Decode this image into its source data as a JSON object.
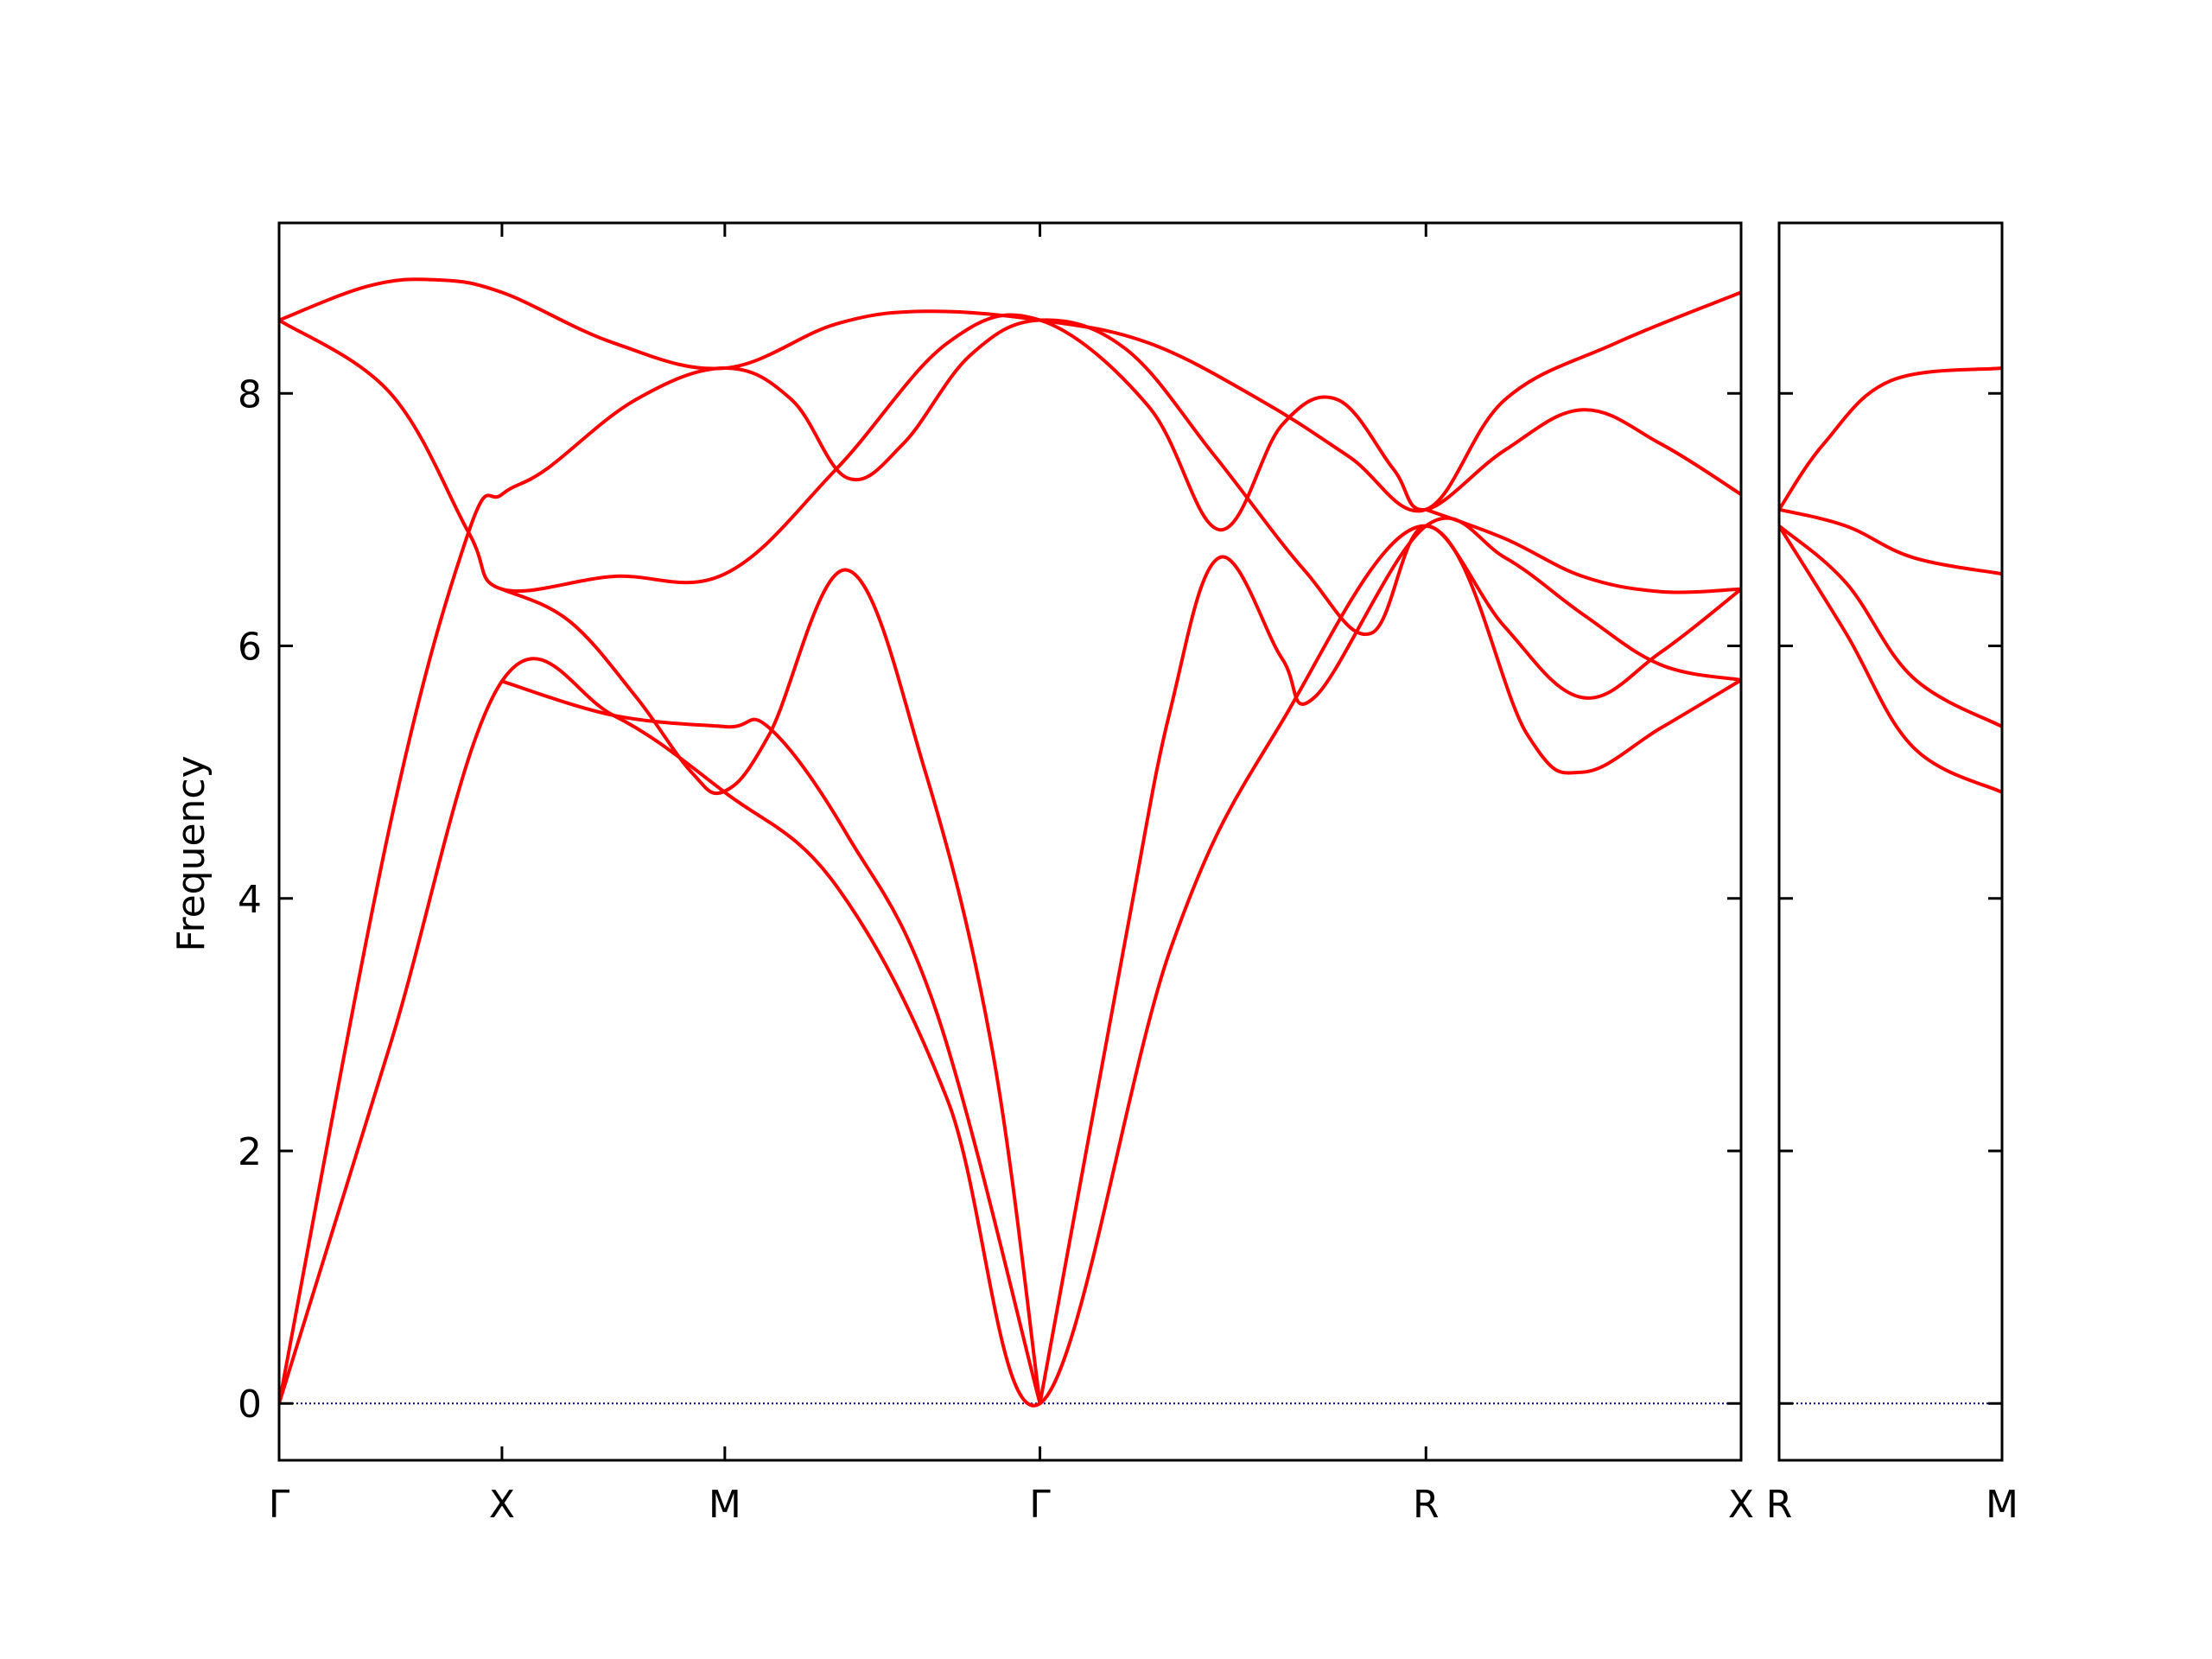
{
  "chart_data": {
    "type": "line",
    "ylabel": "Frequency",
    "ylim": [
      -0.45,
      9.35
    ],
    "yticks": [
      0,
      2,
      4,
      6,
      8
    ],
    "colors": {
      "bands": "#ff0000",
      "zero_line": "#00008b",
      "axes": "#000000"
    },
    "panels": [
      {
        "id": "main",
        "xticks": [
          {
            "x": 0,
            "label": "Γ"
          },
          {
            "x": 1,
            "label": "X"
          },
          {
            "x": 2,
            "label": "M"
          },
          {
            "x": 3.414,
            "label": "Γ"
          },
          {
            "x": 5.146,
            "label": "R"
          },
          {
            "x": 6.56,
            "label": "X"
          }
        ],
        "xlim": [
          0,
          6.56
        ],
        "bands": [
          {
            "name": "",
            "points": [
              [
                0,
                0
              ],
              [
                0.5,
                2.85
              ],
              [
                1,
                5.72
              ],
              [
                1.5,
                5.45
              ],
              [
                2,
                4.84
              ],
              [
                2.5,
                4.1
              ],
              [
                3,
                2.4
              ],
              [
                3.414,
                0
              ],
              [
                4,
                3.6
              ],
              [
                4.5,
                5.4
              ],
              [
                5.146,
                6.95
              ],
              [
                5.6,
                5.3
              ],
              [
                5.85,
                5.0
              ],
              [
                6.2,
                5.35
              ],
              [
                6.56,
                5.73
              ]
            ]
          },
          {
            "name": "",
            "points": [
              [
                0,
                0
              ],
              [
                0.5,
                4.6
              ],
              [
                0.85,
                6.9
              ],
              [
                1,
                7.2
              ],
              [
                1.2,
                7.4
              ],
              [
                1.6,
                7.95
              ],
              [
                2,
                8.2
              ],
              [
                2.3,
                7.95
              ],
              [
                2.55,
                7.33
              ],
              [
                2.8,
                7.6
              ],
              [
                3.1,
                8.3
              ],
              [
                3.414,
                8.58
              ],
              [
                3.8,
                8.35
              ],
              [
                4.2,
                7.5
              ],
              [
                4.6,
                6.6
              ],
              [
                4.9,
                6.1
              ],
              [
                5.146,
                6.95
              ],
              [
                5.5,
                6.15
              ],
              [
                5.85,
                5.59
              ],
              [
                6.2,
                5.95
              ],
              [
                6.56,
                6.45
              ]
            ]
          },
          {
            "name": "",
            "points": [
              [
                0,
                8.58
              ],
              [
                0.5,
                8.0
              ],
              [
                0.85,
                6.9
              ],
              [
                1,
                6.45
              ],
              [
                1.5,
                6.55
              ],
              [
                2,
                6.57
              ],
              [
                2.5,
                7.4
              ],
              [
                3,
                8.4
              ],
              [
                3.414,
                8.58
              ],
              [
                3.9,
                7.9
              ],
              [
                4.22,
                6.92
              ],
              [
                4.5,
                7.75
              ],
              [
                4.75,
                7.95
              ],
              [
                5,
                7.4
              ],
              [
                5.146,
                7.08
              ],
              [
                5.5,
                7.55
              ],
              [
                5.85,
                7.87
              ],
              [
                6.2,
                7.6
              ],
              [
                6.56,
                7.2
              ]
            ]
          },
          {
            "name": "",
            "points": [
              [
                0,
                8.58
              ],
              [
                0.4,
                8.85
              ],
              [
                0.7,
                8.9
              ],
              [
                1,
                8.8
              ],
              [
                1.5,
                8.4
              ],
              [
                2,
                8.2
              ],
              [
                2.5,
                8.55
              ],
              [
                2.9,
                8.65
              ],
              [
                3.414,
                8.58
              ],
              [
                3.9,
                8.4
              ],
              [
                4.4,
                7.95
              ],
              [
                4.8,
                7.5
              ],
              [
                5.146,
                7.08
              ],
              [
                5.5,
                7.95
              ],
              [
                6.0,
                8.4
              ],
              [
                6.56,
                8.8
              ]
            ]
          },
          {
            "name": "",
            "points": [
              [
                1,
                6.45
              ],
              [
                1.3,
                6.2
              ],
              [
                1.6,
                5.6
              ],
              [
                1.85,
                5.0
              ],
              [
                2,
                4.85
              ],
              [
                2.2,
                5.3
              ],
              [
                2.55,
                6.6
              ],
              [
                2.9,
                5.0
              ],
              [
                3.2,
                2.8
              ],
              [
                3.414,
                0
              ]
            ]
          },
          {
            "name": "",
            "points": [
              [
                1,
                5.72
              ],
              [
                1.5,
                5.45
              ],
              [
                2,
                5.36
              ],
              [
                2.2,
                5.35
              ],
              [
                2.55,
                4.5
              ],
              [
                2.95,
                3.1
              ],
              [
                3.414,
                0
              ]
            ]
          },
          {
            "name": "",
            "points": [
              [
                3.414,
                0
              ],
              [
                3.8,
                3.7
              ],
              [
                4.0,
                5.5
              ],
              [
                4.22,
                6.7
              ],
              [
                4.5,
                5.9
              ],
              [
                4.65,
                5.6
              ],
              [
                5.146,
                6.95
              ],
              [
                5.5,
                6.7
              ],
              [
                5.85,
                6.25
              ],
              [
                6.2,
                5.85
              ],
              [
                6.56,
                5.73
              ]
            ]
          },
          {
            "name": "",
            "points": [
              [
                5.146,
                7.08
              ],
              [
                5.5,
                6.85
              ],
              [
                5.85,
                6.55
              ],
              [
                6.2,
                6.43
              ],
              [
                6.56,
                6.45
              ]
            ]
          }
        ]
      },
      {
        "id": "side",
        "xticks": [
          {
            "x": 0,
            "label": "R"
          },
          {
            "x": 1,
            "label": "M"
          }
        ],
        "xlim": [
          0,
          1
        ],
        "bands": [
          {
            "name": "",
            "points": [
              [
                0,
                7.08
              ],
              [
                0.2,
                7.6
              ],
              [
                0.5,
                8.1
              ],
              [
                1,
                8.2
              ]
            ]
          },
          {
            "name": "",
            "points": [
              [
                0,
                7.08
              ],
              [
                0.3,
                6.95
              ],
              [
                0.6,
                6.7
              ],
              [
                1,
                6.57
              ]
            ]
          },
          {
            "name": "",
            "points": [
              [
                0,
                6.95
              ],
              [
                0.3,
                6.5
              ],
              [
                0.6,
                5.75
              ],
              [
                1,
                5.36
              ]
            ]
          },
          {
            "name": "",
            "points": [
              [
                0,
                6.95
              ],
              [
                0.3,
                6.1
              ],
              [
                0.6,
                5.2
              ],
              [
                1,
                4.84
              ]
            ]
          }
        ]
      }
    ]
  }
}
